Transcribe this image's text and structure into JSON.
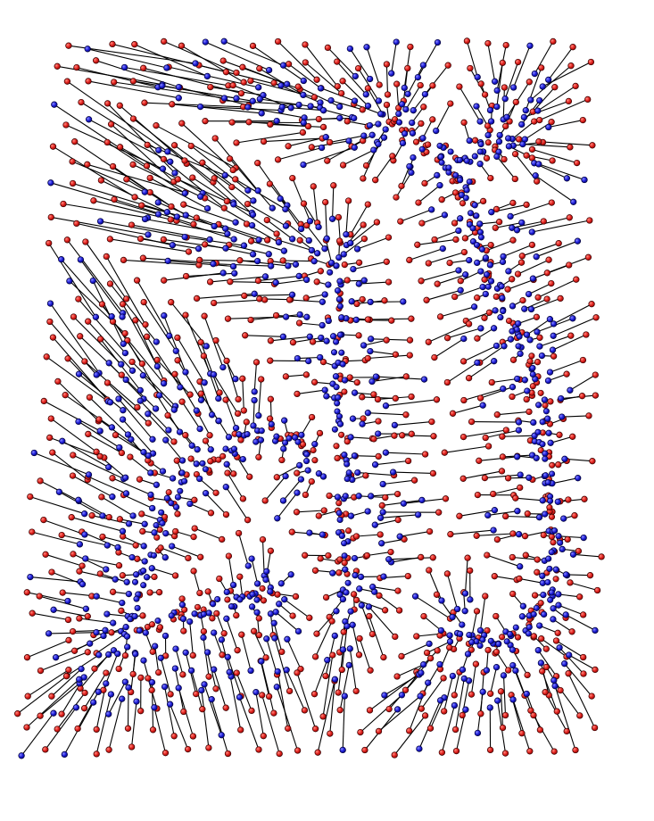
{
  "figure": {
    "description_visible_text": "",
    "colors": {
      "background": "#ffffff",
      "red_marker": "#e0201c",
      "blue_marker": "#1c1cd8",
      "link": "#000000"
    },
    "legend": null
  }
}
